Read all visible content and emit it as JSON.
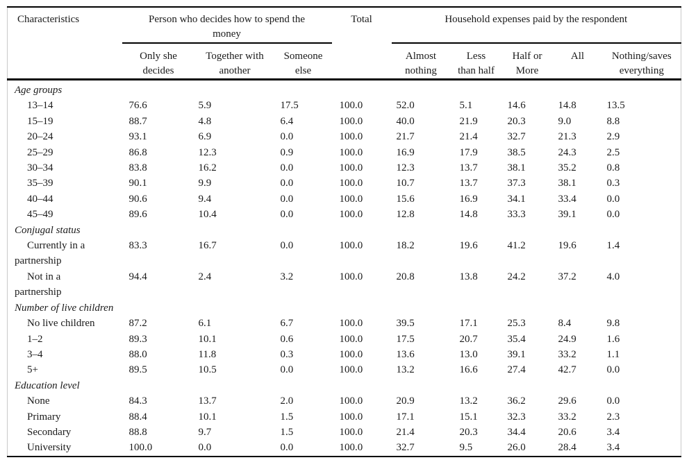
{
  "table": {
    "col1_header": "Characteristics",
    "groups": [
      {
        "label": "Person who decides how to spend the\nmoney",
        "span": 3
      },
      {
        "label": "Total",
        "span": 1
      },
      {
        "label": "Household expenses paid by the respondent",
        "span": 5
      }
    ],
    "subheaders": [
      "Only she\ndecides",
      "Together with\nanother",
      "Someone\nelse",
      "Almost\nnothing",
      "Less\nthan half",
      "Half or\nMore",
      "All",
      "Nothing/saves\neverything"
    ],
    "sections": [
      {
        "title": "Age groups",
        "rows": [
          {
            "label": "13–14",
            "values": [
              "76.6",
              "5.9",
              "17.5",
              "100.0",
              "52.0",
              "5.1",
              "14.6",
              "14.8",
              "13.5"
            ]
          },
          {
            "label": "15–19",
            "values": [
              "88.7",
              "4.8",
              "6.4",
              "100.0",
              "40.0",
              "21.9",
              "20.3",
              "9.0",
              "8.8"
            ]
          },
          {
            "label": "20–24",
            "values": [
              "93.1",
              "6.9",
              "0.0",
              "100.0",
              "21.7",
              "21.4",
              "32.7",
              "21.3",
              "2.9"
            ]
          },
          {
            "label": "25–29",
            "values": [
              "86.8",
              "12.3",
              "0.9",
              "100.0",
              "16.9",
              "17.9",
              "38.5",
              "24.3",
              "2.5"
            ]
          },
          {
            "label": "30–34",
            "values": [
              "83.8",
              "16.2",
              "0.0",
              "100.0",
              "12.3",
              "13.7",
              "38.1",
              "35.2",
              "0.8"
            ]
          },
          {
            "label": "35–39",
            "values": [
              "90.1",
              "9.9",
              "0.0",
              "100.0",
              "10.7",
              "13.7",
              "37.3",
              "38.1",
              "0.3"
            ]
          },
          {
            "label": "40–44",
            "values": [
              "90.6",
              "9.4",
              "0.0",
              "100.0",
              "15.6",
              "16.9",
              "34.1",
              "33.4",
              "0.0"
            ]
          },
          {
            "label": "45–49",
            "values": [
              "89.6",
              "10.4",
              "0.0",
              "100.0",
              "12.8",
              "14.8",
              "33.3",
              "39.1",
              "0.0"
            ]
          }
        ]
      },
      {
        "title": "Conjugal status",
        "rows": [
          {
            "label": "Currently in a\npartnership",
            "values": [
              "83.3",
              "16.7",
              "0.0",
              "100.0",
              "18.2",
              "19.6",
              "41.2",
              "19.6",
              "1.4"
            ]
          },
          {
            "label": "Not in a\npartnership",
            "values": [
              "94.4",
              "2.4",
              "3.2",
              "100.0",
              "20.8",
              "13.8",
              "24.2",
              "37.2",
              "4.0"
            ]
          }
        ]
      },
      {
        "title": "Number of live children",
        "rows": [
          {
            "label": "No live children",
            "values": [
              "87.2",
              "6.1",
              "6.7",
              "100.0",
              "39.5",
              "17.1",
              "25.3",
              "8.4",
              "9.8"
            ]
          },
          {
            "label": "1–2",
            "values": [
              "89.3",
              "10.1",
              "0.6",
              "100.0",
              "17.5",
              "20.7",
              "35.4",
              "24.9",
              "1.6"
            ]
          },
          {
            "label": "3–4",
            "values": [
              "88.0",
              "11.8",
              "0.3",
              "100.0",
              "13.6",
              "13.0",
              "39.1",
              "33.2",
              "1.1"
            ]
          },
          {
            "label": "5+",
            "values": [
              "89.5",
              "10.5",
              "0.0",
              "100.0",
              "13.2",
              "16.6",
              "27.4",
              "42.7",
              "0.0"
            ]
          }
        ]
      },
      {
        "title": "Education level",
        "rows": [
          {
            "label": "None",
            "values": [
              "84.3",
              "13.7",
              "2.0",
              "100.0",
              "20.9",
              "13.2",
              "36.2",
              "29.6",
              "0.0"
            ]
          },
          {
            "label": "Primary",
            "values": [
              "88.4",
              "10.1",
              "1.5",
              "100.0",
              "17.1",
              "15.1",
              "32.3",
              "33.2",
              "2.3"
            ]
          },
          {
            "label": "Secondary",
            "values": [
              "88.8",
              "9.7",
              "1.5",
              "100.0",
              "21.4",
              "20.3",
              "34.4",
              "20.6",
              "3.4"
            ]
          },
          {
            "label": "University",
            "values": [
              "100.0",
              "0.0",
              "0.0",
              "100.0",
              "32.7",
              "9.5",
              "26.0",
              "28.4",
              "3.4"
            ]
          }
        ]
      }
    ]
  }
}
